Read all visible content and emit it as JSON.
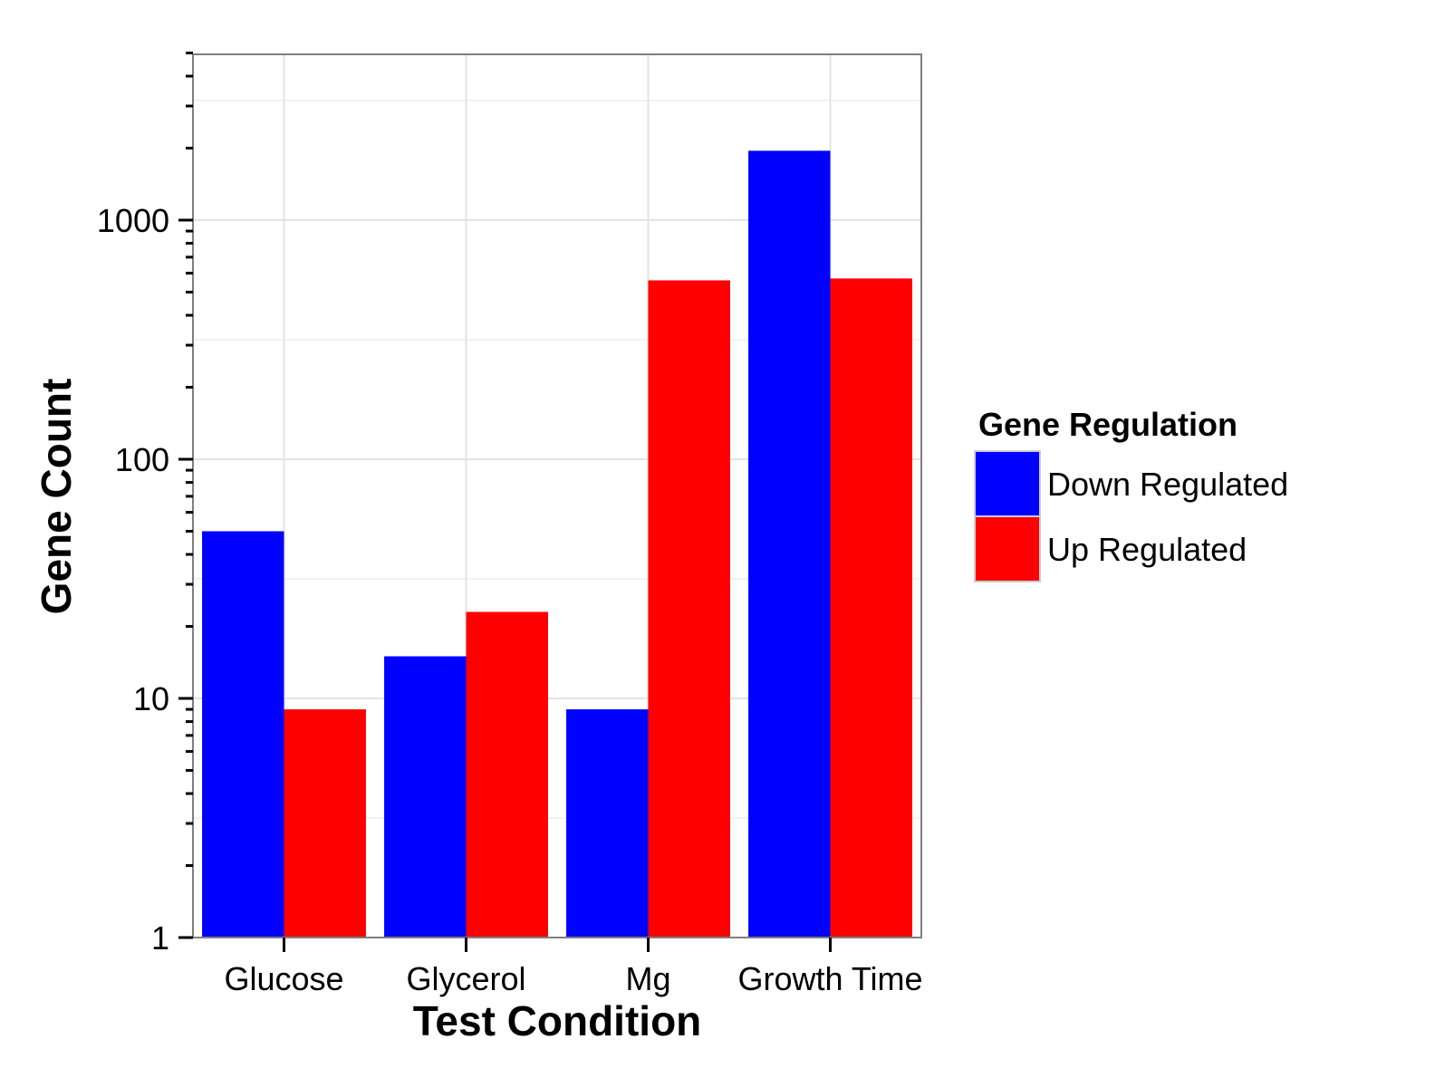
{
  "chart_data": {
    "type": "bar",
    "xlabel": "Test Condition",
    "ylabel": "Gene Count",
    "y_scale": "log10",
    "ylim": [
      1,
      5000
    ],
    "y_ticks": [
      1,
      10,
      100,
      1000
    ],
    "y_tick_labels": [
      "1",
      "10",
      "100",
      "1000"
    ],
    "grid": true,
    "legend_position": "right",
    "categories": [
      "Glucose",
      "Glycerol",
      "Mg",
      "Growth Time"
    ],
    "legend": {
      "title": "Gene Regulation"
    },
    "series": [
      {
        "name": "Down Regulated",
        "color": "#0000ff",
        "values": [
          50,
          15,
          9,
          1950
        ]
      },
      {
        "name": "Up Regulated",
        "color": "#ff0000",
        "values": [
          9,
          23,
          560,
          570
        ]
      }
    ]
  }
}
